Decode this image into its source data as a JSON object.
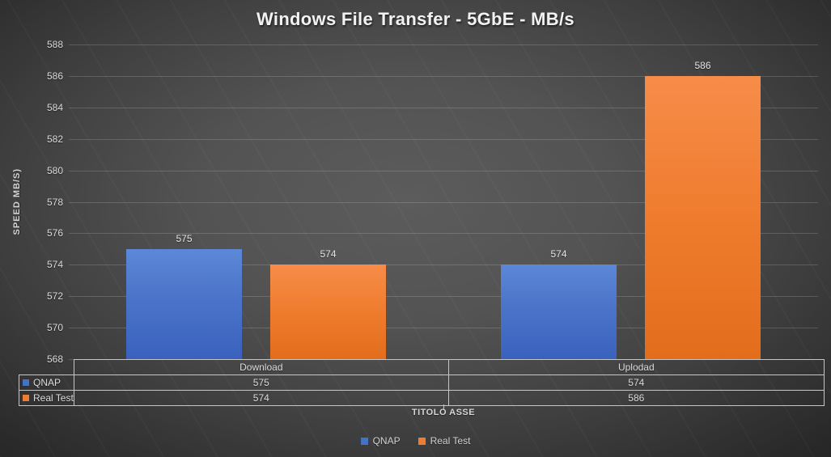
{
  "title": "Windows File Transfer - 5GbE - MB/s",
  "chart_data": {
    "type": "bar",
    "categories": [
      "Download",
      "Uplodad"
    ],
    "series": [
      {
        "name": "QNAP",
        "color": "#4472C4",
        "values": [
          575,
          574
        ]
      },
      {
        "name": "Real Test",
        "color": "#ED7D31",
        "values": [
          574,
          586
        ]
      }
    ],
    "title": "Windows File Transfer - 5GbE - MB/s",
    "xlabel": "TITOLO ASSE",
    "ylabel": "SPEED MB/S)",
    "ylim": [
      568,
      588
    ],
    "ytick_step": 2,
    "yticks": [
      568,
      570,
      572,
      574,
      576,
      578,
      580,
      582,
      584,
      586,
      588
    ],
    "grid": true,
    "bar_labels_shown": true,
    "legend_position": "bottom",
    "data_table_shown": true
  },
  "colors": {
    "background_center": "#595959",
    "background_corner": "#262626",
    "series_blue": "#4472C4",
    "series_orange": "#ED7D31",
    "gridline": "#6e6e6e",
    "table_border": "#c6c6c6",
    "text": "#d9d9d9",
    "title_text": "#f2f2f2"
  }
}
